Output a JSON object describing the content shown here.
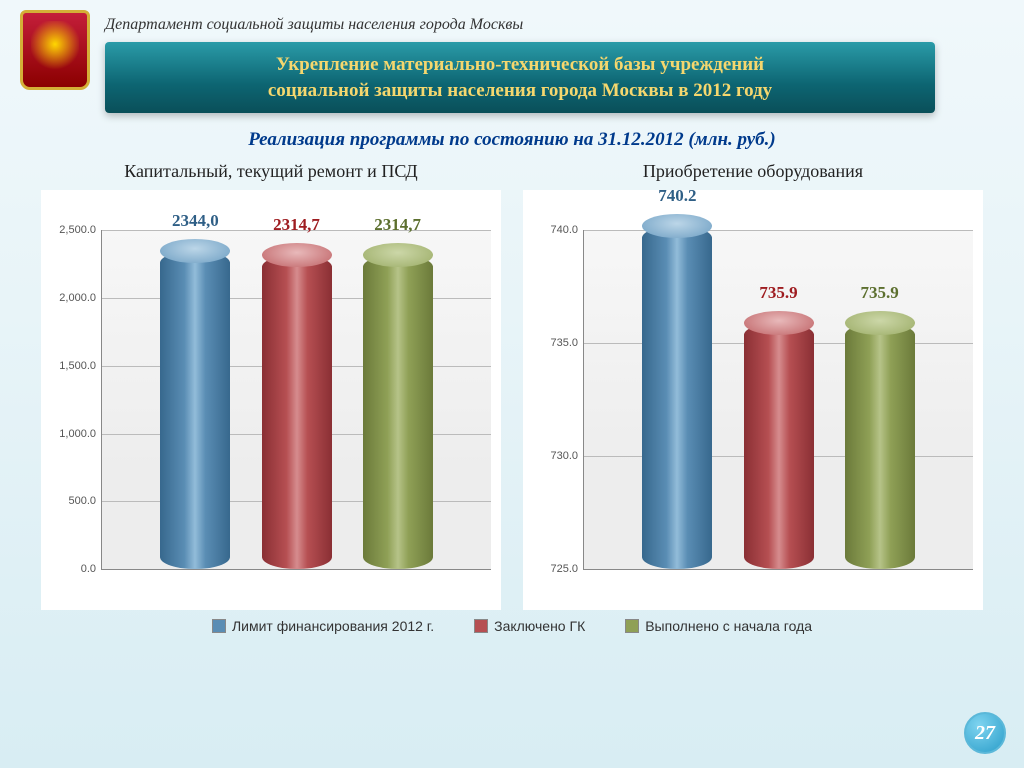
{
  "header": {
    "department": "Департамент социальной защиты населения города Москвы",
    "title_line1": "Укрепление материально-технической базы учреждений",
    "title_line2": "социальной защиты населения города Москвы в 2012 году"
  },
  "subtitle": "Реализация программы по состоянию на 31.12.2012 (млн. руб.)",
  "page_number": "27",
  "colors": {
    "series_limit": {
      "body": "linear-gradient(to right,#37688d 0%,#5a8db4 35%,#92bcd9 50%,#5a8db4 65%,#37688d 100%)",
      "top": "radial-gradient(ellipse at 50% 40%,#bcd6e8,#6d9ec2)",
      "swatch": "#5a8db4",
      "label": "#2f5f86"
    },
    "series_gk": {
      "body": "linear-gradient(to right,#8a2f34 0%,#b64f52 35%,#d68c8e 50%,#b64f52 65%,#8a2f34 100%)",
      "top": "radial-gradient(ellipse at 50% 40%,#e8b9ba,#bf6265)",
      "swatch": "#b64f52",
      "label": "#9e1c20"
    },
    "series_done": {
      "body": "linear-gradient(to right,#6b7a3a 0%,#8fa056 35%,#b6c388 50%,#8fa056 65%,#6b7a3a 100%)",
      "top": "radial-gradient(ellipse at 50% 40%,#ccd7a8,#9bac66)",
      "swatch": "#8fa056",
      "label": "#5c6f2e"
    }
  },
  "legend": {
    "limit": "Лимит финансирования 2012 г.",
    "gk": "Заключено ГК",
    "done": "Выполнено с начала года"
  },
  "chart_left": {
    "title": "Капитальный, текущий ремонт и ПСД",
    "type": "bar-cylinder",
    "ylim": [
      0,
      2500
    ],
    "ytick_step": 500,
    "yticks": [
      "0.0",
      "500.0",
      "1,000.0",
      "1,500.0",
      "2,000.0",
      "2,500.0"
    ],
    "bars": [
      {
        "series": "limit",
        "value": 2344.0,
        "label": "2344,0",
        "x_pct": 24
      },
      {
        "series": "gk",
        "value": 2314.7,
        "label": "2314,7",
        "x_pct": 50
      },
      {
        "series": "done",
        "value": 2314.7,
        "label": "2314,7",
        "x_pct": 76
      }
    ]
  },
  "chart_right": {
    "title": "Приобретение оборудования",
    "type": "bar-cylinder",
    "ylim": [
      725,
      740
    ],
    "ytick_step": 5,
    "yticks": [
      "725.0",
      "730.0",
      "735.0",
      "740.0"
    ],
    "bars": [
      {
        "series": "limit",
        "value": 740.2,
        "label": "740.2",
        "x_pct": 24
      },
      {
        "series": "gk",
        "value": 735.9,
        "label": "735.9",
        "x_pct": 50
      },
      {
        "series": "done",
        "value": 735.9,
        "label": "735.9",
        "x_pct": 76
      }
    ]
  }
}
